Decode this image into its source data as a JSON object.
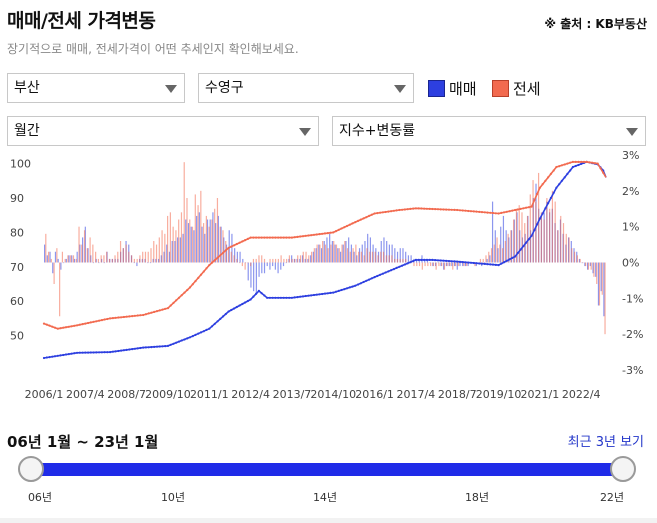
{
  "header": {
    "title": "매매/전세 가격변동",
    "source": "※ 출처 : KB부동산",
    "subtitle": "장기적으로 매매, 전세가격이 어떤 추세인지 확인해보세요."
  },
  "filters": {
    "region": "부산",
    "district": "수영구",
    "period": "월간",
    "metric": "지수+변동률"
  },
  "legend": [
    {
      "label": "매매",
      "color": "#2d3fe0"
    },
    {
      "label": "전세",
      "color": "#f26a4f"
    }
  ],
  "slider": {
    "range_label": "06년 1월 ~ 23년 1월",
    "recent_button": "최근 3년 보기",
    "ticks": [
      "06년",
      "10년",
      "14년",
      "18년",
      "22년"
    ]
  },
  "chart_data": {
    "type": "line",
    "x_ticks": [
      "2006/1",
      "2007/4",
      "2008/7",
      "2009/10",
      "2011/1",
      "2012/4",
      "2013/7",
      "2014/10",
      "2016/1",
      "2017/4",
      "2018/7",
      "2019/10",
      "2021/1",
      "2022/4"
    ],
    "y_left": {
      "ticks": [
        50,
        60,
        70,
        80,
        90,
        100
      ],
      "range": [
        40,
        102.5
      ]
    },
    "y_right": {
      "ticks": [
        "3%",
        "2%",
        "1%",
        "0%",
        "-1%",
        "-2%",
        "-3%"
      ],
      "range": [
        -3,
        3
      ]
    },
    "x_range": [
      "2006/1",
      "2023/1"
    ],
    "series": [
      {
        "name": "매매",
        "kind": "index",
        "color": "#2d3fe0",
        "points": [
          [
            "2006/1",
            43.5
          ],
          [
            "2007/1",
            45
          ],
          [
            "2008/1",
            45.2
          ],
          [
            "2009/1",
            46.5
          ],
          [
            "2009/10",
            47
          ],
          [
            "2010/6",
            49.5
          ],
          [
            "2011/1",
            52
          ],
          [
            "2011/8",
            57
          ],
          [
            "2012/4",
            60.5
          ],
          [
            "2012/7",
            63
          ],
          [
            "2012/10",
            61
          ],
          [
            "2013/7",
            61
          ],
          [
            "2014/10",
            62.5
          ],
          [
            "2015/6",
            64.5
          ],
          [
            "2016/1",
            67
          ],
          [
            "2016/10",
            70
          ],
          [
            "2017/4",
            72
          ],
          [
            "2017/10",
            72
          ],
          [
            "2018/7",
            71.5
          ],
          [
            "2019/10",
            70.5
          ],
          [
            "2020/4",
            73
          ],
          [
            "2020/10",
            79
          ],
          [
            "2021/1",
            84
          ],
          [
            "2021/7",
            93
          ],
          [
            "2022/1",
            99
          ],
          [
            "2022/6",
            100.5
          ],
          [
            "2022/10",
            99.8
          ],
          [
            "2022/12",
            98
          ],
          [
            "2023/1",
            96
          ]
        ]
      },
      {
        "name": "전세",
        "kind": "index",
        "color": "#f26a4f",
        "points": [
          [
            "2006/1",
            53.5
          ],
          [
            "2006/6",
            52
          ],
          [
            "2007/1",
            53
          ],
          [
            "2008/1",
            55
          ],
          [
            "2009/1",
            56
          ],
          [
            "2009/10",
            58
          ],
          [
            "2010/6",
            64
          ],
          [
            "2011/1",
            70.5
          ],
          [
            "2011/8",
            75.5
          ],
          [
            "2012/4",
            78.5
          ],
          [
            "2013/7",
            78.5
          ],
          [
            "2014/10",
            80
          ],
          [
            "2015/6",
            83
          ],
          [
            "2016/1",
            85.5
          ],
          [
            "2016/10",
            86.5
          ],
          [
            "2017/4",
            87
          ],
          [
            "2018/7",
            86.5
          ],
          [
            "2019/10",
            85.5
          ],
          [
            "2020/4",
            86.5
          ],
          [
            "2020/10",
            87.5
          ],
          [
            "2021/1",
            93
          ],
          [
            "2021/7",
            99
          ],
          [
            "2022/1",
            100.5
          ],
          [
            "2022/6",
            100.5
          ],
          [
            "2022/10",
            100
          ],
          [
            "2023/1",
            96
          ]
        ]
      },
      {
        "name": "매매",
        "kind": "change",
        "color": "#2d3fe0",
        "values": [
          0.5,
          0.2,
          0.3,
          -0.3,
          0.3,
          0.1,
          -0.2,
          0.0,
          0.1,
          0.2,
          0.2,
          0.1,
          0.3,
          0.5,
          0.7,
          1.0,
          0.4,
          0.2,
          0.0,
          0.1,
          0.0,
          0.1,
          0.0,
          0.3,
          0.1,
          0.1,
          0.1,
          0.1,
          0.3,
          0.4,
          0.6,
          0.5,
          0.2,
          0.0,
          -0.1,
          0.1,
          0.1,
          0.1,
          0.0,
          0.0,
          0.1,
          0.1,
          0.1,
          0.2,
          0.3,
          0.5,
          0.3,
          0.6,
          0.6,
          0.7,
          0.7,
          0.8,
          1.2,
          1.1,
          1.0,
          0.9,
          1.3,
          1.4,
          1.0,
          0.8,
          1.2,
          1.2,
          1.4,
          1.1,
          1.3,
          1.0,
          0.7,
          0.5,
          0.9,
          0.8,
          0.4,
          0.3,
          0.3,
          0.1,
          0.0,
          -0.5,
          -0.7,
          -0.8,
          -0.9,
          -0.4,
          -0.3,
          -0.3,
          -0.1,
          -0.2,
          -0.1,
          -0.2,
          -0.3,
          -0.2,
          -0.1,
          0.0,
          0.1,
          0.2,
          0.1,
          0.1,
          0.1,
          0.2,
          0.1,
          0.1,
          0.2,
          0.3,
          0.4,
          0.5,
          0.4,
          0.6,
          0.7,
          0.8,
          0.6,
          0.5,
          0.4,
          0.3,
          0.5,
          0.6,
          0.7,
          0.5,
          0.3,
          0.2,
          0.4,
          0.5,
          0.6,
          0.8,
          0.7,
          0.5,
          0.4,
          0.3,
          0.6,
          0.7,
          0.6,
          0.5,
          0.5,
          0.4,
          0.3,
          0.4,
          0.4,
          0.3,
          0.2,
          0.2,
          0.1,
          0.1,
          0.1,
          0.2,
          0.1,
          0.1,
          0.0,
          -0.1,
          -0.1,
          0.0,
          -0.1,
          -0.2,
          -0.1,
          -0.1,
          -0.1,
          -0.1,
          -0.2,
          -0.1,
          -0.1,
          -0.1,
          -0.1,
          0.0,
          0.0,
          -0.1,
          0.0,
          -0.1,
          0.0,
          0.1,
          0.2,
          1.7,
          0.9,
          0.4,
          1.0,
          1.3,
          0.9,
          0.7,
          0.9,
          1.2,
          1.4,
          0.9,
          0.7,
          0.8,
          1.3,
          0.9,
          1.8,
          2.2,
          1.5,
          1.3,
          1.4,
          1.7,
          1.4,
          1.5,
          1.1,
          0.9,
          1.2,
          0.8,
          0.5,
          0.7,
          0.6,
          0.4,
          0.3,
          0.1,
          0.0,
          -0.1,
          -0.2,
          -0.1,
          -0.3,
          -0.4,
          -1.2,
          -0.8,
          -1.5
        ]
      },
      {
        "name": "전세",
        "kind": "change",
        "color": "#f26a4f",
        "values": [
          0.8,
          0.3,
          0.1,
          -0.6,
          0.4,
          -1.5,
          0.3,
          0.1,
          0.2,
          0.2,
          0.2,
          0.1,
          1.0,
          0.5,
          0.9,
          0.4,
          0.7,
          0.5,
          0.3,
          0.1,
          0.2,
          0.2,
          0.3,
          0.1,
          0.1,
          0.2,
          0.3,
          0.6,
          0.4,
          0.5,
          0.3,
          0.2,
          0.1,
          0.1,
          0.2,
          0.3,
          0.3,
          0.3,
          0.4,
          0.6,
          0.5,
          0.7,
          0.9,
          0.8,
          1.3,
          1.4,
          1.0,
          0.9,
          1.2,
          1.4,
          2.8,
          1.8,
          1.2,
          1.0,
          1.9,
          1.6,
          2.0,
          1.1,
          1.3,
          1.0,
          1.2,
          1.5,
          1.8,
          1.0,
          0.9,
          0.6,
          0.4,
          0.3,
          0.2,
          0.1,
          0.0,
          -0.1,
          -0.2,
          0.0,
          -0.1,
          0.1,
          0.1,
          0.2,
          0.2,
          0.1,
          0.0,
          0.1,
          0.1,
          0.1,
          0.1,
          0.2,
          0.1,
          0.1,
          0.2,
          0.1,
          0.1,
          0.2,
          0.2,
          0.3,
          0.3,
          0.2,
          0.3,
          0.4,
          0.5,
          0.5,
          0.6,
          0.5,
          0.4,
          0.5,
          0.6,
          0.5,
          0.4,
          0.5,
          0.6,
          0.4,
          0.3,
          0.4,
          0.5,
          0.3,
          0.3,
          0.2,
          0.4,
          0.3,
          0.3,
          0.3,
          0.2,
          0.3,
          0.3,
          0.2,
          0.2,
          0.2,
          0.1,
          0.1,
          0.1,
          0.1,
          0.1,
          0.0,
          0.0,
          -0.1,
          -0.1,
          -0.1,
          -0.2,
          -0.1,
          -0.1,
          -0.1,
          -0.1,
          -0.2,
          -0.1,
          -0.1,
          -0.2,
          -0.1,
          -0.1,
          -0.2,
          -0.1,
          -0.1,
          0.0,
          -0.1,
          -0.1,
          0.0,
          0.0,
          -0.1,
          0.0,
          0.1,
          0.1,
          0.2,
          0.3,
          0.4,
          0.5,
          0.7,
          0.5,
          0.4,
          0.6,
          0.8,
          0.9,
          1.2,
          1.5,
          1.6,
          1.4,
          1.1,
          1.3,
          1.9,
          2.3,
          1.7,
          2.5,
          1.4,
          1.2,
          1.8,
          1.5,
          2.0,
          1.7,
          0.9,
          1.3,
          1.1,
          0.8,
          0.7,
          0.4,
          0.3,
          0.2,
          0.1,
          0.0,
          -0.1,
          -0.2,
          -0.2,
          -0.4,
          -0.6,
          -1.2,
          -0.9,
          -2.0
        ]
      }
    ]
  }
}
